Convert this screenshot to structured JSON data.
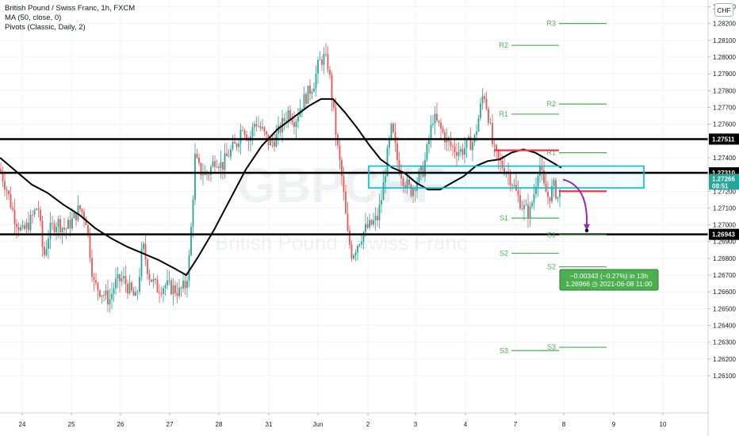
{
  "header": {
    "symbol_line": "British Pound / Swiss Franc, 1h, FXCM",
    "ma_line": "MA (50, close, 0)",
    "pivots_line": "Pivots (Classic, Daily, 2)",
    "currency": "CHF"
  },
  "watermark": {
    "symbol": "GBPCHF",
    "name": "British Pound / Swiss Franc"
  },
  "colors": {
    "up": "#26a69a",
    "down": "#ef5350",
    "pivot": "#4caf50",
    "ma": "#000000",
    "zone": "#00bcd4",
    "red_level": "#f23645",
    "arrow": "#9c27b0",
    "last_price": "#26a69a",
    "projection": "#4caf50"
  },
  "chart_data": {
    "type": "candlestick",
    "title": "British Pound / Swiss Franc, 1h, FXCM",
    "ylim": [
      1.2605,
      1.2835
    ],
    "y_ticks": [
      "1.26100",
      "1.26200",
      "1.26300",
      "1.26400",
      "1.26500",
      "1.26600",
      "1.26700",
      "1.26800",
      "1.26900",
      "1.27000",
      "1.27100",
      "1.27200",
      "1.27300",
      "1.27400",
      "1.27500",
      "1.27600",
      "1.27700",
      "1.27800",
      "1.27900",
      "1.28000",
      "1.28100",
      "1.28200",
      "1.28300"
    ],
    "x_ticks": [
      "24",
      "25",
      "26",
      "27",
      "28",
      "31",
      "Jun",
      "2",
      "3",
      "4",
      "7",
      "8",
      "9",
      "10"
    ],
    "price_path": [
      [
        -2,
        1.2736
      ],
      [
        8,
        1.2722
      ],
      [
        18,
        1.2705
      ],
      [
        28,
        1.2695
      ],
      [
        38,
        1.2702
      ],
      [
        48,
        1.2712
      ],
      [
        55,
        1.268
      ],
      [
        62,
        1.2696
      ],
      [
        72,
        1.2702
      ],
      [
        82,
        1.2697
      ],
      [
        92,
        1.2703
      ],
      [
        100,
        1.271
      ],
      [
        108,
        1.2705
      ],
      [
        112,
        1.269
      ],
      [
        118,
        1.2665
      ],
      [
        128,
        1.266
      ],
      [
        138,
        1.2655
      ],
      [
        145,
        1.2665
      ],
      [
        155,
        1.2668
      ],
      [
        165,
        1.266
      ],
      [
        172,
        1.2655
      ],
      [
        180,
        1.2688
      ],
      [
        188,
        1.267
      ],
      [
        198,
        1.2662
      ],
      [
        208,
        1.2664
      ],
      [
        218,
        1.2662
      ],
      [
        226,
        1.266
      ],
      [
        234,
        1.2664
      ],
      [
        238,
        1.2676
      ],
      [
        242,
        1.2705
      ],
      [
        246,
        1.274
      ],
      [
        252,
        1.2732
      ],
      [
        262,
        1.273
      ],
      [
        272,
        1.274
      ],
      [
        280,
        1.2735
      ],
      [
        288,
        1.2742
      ],
      [
        298,
        1.2748
      ],
      [
        306,
        1.276
      ],
      [
        314,
        1.275
      ],
      [
        322,
        1.2762
      ],
      [
        332,
        1.2755
      ],
      [
        340,
        1.2748
      ],
      [
        348,
        1.2752
      ],
      [
        356,
        1.276
      ],
      [
        364,
        1.2768
      ],
      [
        372,
        1.2762
      ],
      [
        380,
        1.2772
      ],
      [
        388,
        1.2778
      ],
      [
        396,
        1.2785
      ],
      [
        402,
        1.2796
      ],
      [
        408,
        1.28
      ],
      [
        414,
        1.2795
      ],
      [
        420,
        1.277
      ],
      [
        426,
        1.2745
      ],
      [
        432,
        1.2725
      ],
      [
        438,
        1.2695
      ],
      [
        444,
        1.2682
      ],
      [
        452,
        1.269
      ],
      [
        460,
        1.2697
      ],
      [
        468,
        1.27
      ],
      [
        476,
        1.2704
      ],
      [
        482,
        1.2718
      ],
      [
        488,
        1.274
      ],
      [
        494,
        1.2758
      ],
      [
        502,
        1.2736
      ],
      [
        510,
        1.2726
      ],
      [
        518,
        1.272
      ],
      [
        526,
        1.2727
      ],
      [
        534,
        1.2733
      ],
      [
        540,
        1.2748
      ],
      [
        546,
        1.2764
      ],
      [
        552,
        1.276
      ],
      [
        558,
        1.2755
      ],
      [
        566,
        1.2748
      ],
      [
        574,
        1.2745
      ],
      [
        582,
        1.2744
      ],
      [
        590,
        1.2748
      ],
      [
        598,
        1.275
      ],
      [
        604,
        1.2765
      ],
      [
        610,
        1.278
      ],
      [
        616,
        1.2765
      ],
      [
        622,
        1.2745
      ],
      [
        628,
        1.2738
      ],
      [
        636,
        1.2734
      ],
      [
        644,
        1.2728
      ],
      [
        652,
        1.2718
      ],
      [
        660,
        1.271
      ],
      [
        668,
        1.2707
      ],
      [
        674,
        1.272
      ],
      [
        680,
        1.2738
      ],
      [
        686,
        1.2722
      ],
      [
        692,
        1.2716
      ],
      [
        698,
        1.2723
      ],
      [
        704,
        1.2716
      ],
      [
        710,
        1.2726
      ]
    ],
    "ma50": [
      [
        0,
        1.274
      ],
      [
        20,
        1.2732
      ],
      [
        40,
        1.2724
      ],
      [
        60,
        1.2719
      ],
      [
        80,
        1.2712
      ],
      [
        100,
        1.2706
      ],
      [
        120,
        1.2698
      ],
      [
        140,
        1.2692
      ],
      [
        160,
        1.2687
      ],
      [
        180,
        1.2683
      ],
      [
        200,
        1.2679
      ],
      [
        220,
        1.2674
      ],
      [
        235,
        1.267
      ],
      [
        250,
        1.2681
      ],
      [
        270,
        1.2697
      ],
      [
        290,
        1.2715
      ],
      [
        310,
        1.2733
      ],
      [
        330,
        1.2747
      ],
      [
        350,
        1.2757
      ],
      [
        370,
        1.2764
      ],
      [
        390,
        1.2771
      ],
      [
        405,
        1.2775
      ],
      [
        420,
        1.2775
      ],
      [
        435,
        1.2767
      ],
      [
        450,
        1.2758
      ],
      [
        465,
        1.2748
      ],
      [
        480,
        1.2739
      ],
      [
        495,
        1.2734
      ],
      [
        510,
        1.2731
      ],
      [
        525,
        1.2725
      ],
      [
        540,
        1.2721
      ],
      [
        555,
        1.2721
      ],
      [
        570,
        1.2725
      ],
      [
        585,
        1.2729
      ],
      [
        600,
        1.2735
      ],
      [
        615,
        1.2738
      ],
      [
        630,
        1.2739
      ],
      [
        645,
        1.2743
      ],
      [
        660,
        1.2745
      ],
      [
        675,
        1.2743
      ],
      [
        690,
        1.2739
      ],
      [
        708,
        1.2734
      ]
    ],
    "key_levels": [
      1.27511,
      1.2731,
      1.26943
    ],
    "pivots": [
      {
        "label": "R3",
        "value": 1.282,
        "from": 705,
        "to": 765
      },
      {
        "label": "R2",
        "value": 1.2807,
        "from": 645,
        "to": 705
      },
      {
        "label": "R2",
        "value": 1.2772,
        "from": 705,
        "to": 765
      },
      {
        "label": "R1",
        "value": 1.2766,
        "from": 645,
        "to": 705
      },
      {
        "label": "R1",
        "value": 1.2743,
        "from": 705,
        "to": 765
      },
      {
        "label": "S1",
        "value": 1.2704,
        "from": 645,
        "to": 705
      },
      {
        "label": "S1",
        "value": 1.2694,
        "from": 705,
        "to": 765
      },
      {
        "label": "S2",
        "value": 1.2683,
        "from": 645,
        "to": 705
      },
      {
        "label": "S2",
        "value": 1.2675,
        "from": 705,
        "to": 765
      },
      {
        "label": "S3",
        "value": 1.2625,
        "from": 645,
        "to": 705
      },
      {
        "label": "S3",
        "value": 1.2627,
        "from": 705,
        "to": 765
      }
    ],
    "zone": {
      "from": 465,
      "to": 812,
      "top": 1.2735,
      "bottom": 1.2722
    },
    "red_levels": [
      {
        "value": 1.27444,
        "from": 623,
        "to": 705
      },
      {
        "value": 1.272,
        "from": 705,
        "to": 765
      }
    ],
    "last_price": {
      "value": "1.27266",
      "countdown": "08:51"
    },
    "price_tags": [
      {
        "value": "1.27511",
        "level": 1.27511
      },
      {
        "value": "1.27310",
        "level": 1.2731
      },
      {
        "value": "1.26943",
        "level": 1.26943
      }
    ],
    "projection": {
      "line1": "−0.00343 (−0.27%) in 13h",
      "line2_price": "1.26966",
      "line2_date": "2021-06-08  11:00",
      "from_x": 710,
      "from_y": 1.2727,
      "to_x": 740,
      "to_y": 1.26966
    }
  }
}
